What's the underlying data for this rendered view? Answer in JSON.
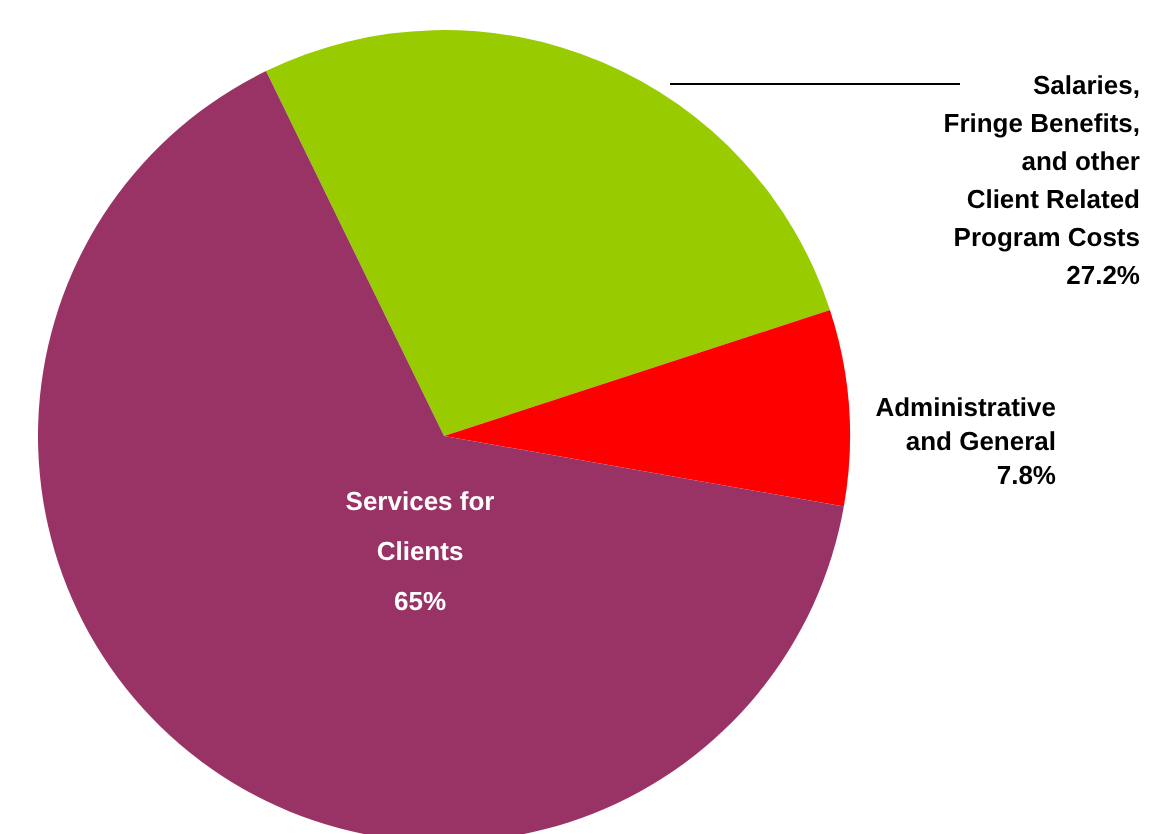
{
  "chart_data": {
    "type": "pie",
    "categories": [
      "Salaries, Fringe Benefits, and other Client Related Program Costs",
      "Administrative and General",
      "Services for Clients"
    ],
    "values": [
      27.2,
      7.8,
      65
    ],
    "value_labels": [
      "27.2%",
      "7.8%",
      "65%"
    ],
    "colors": [
      "#99cc00",
      "#ff0000",
      "#993366"
    ]
  }
}
